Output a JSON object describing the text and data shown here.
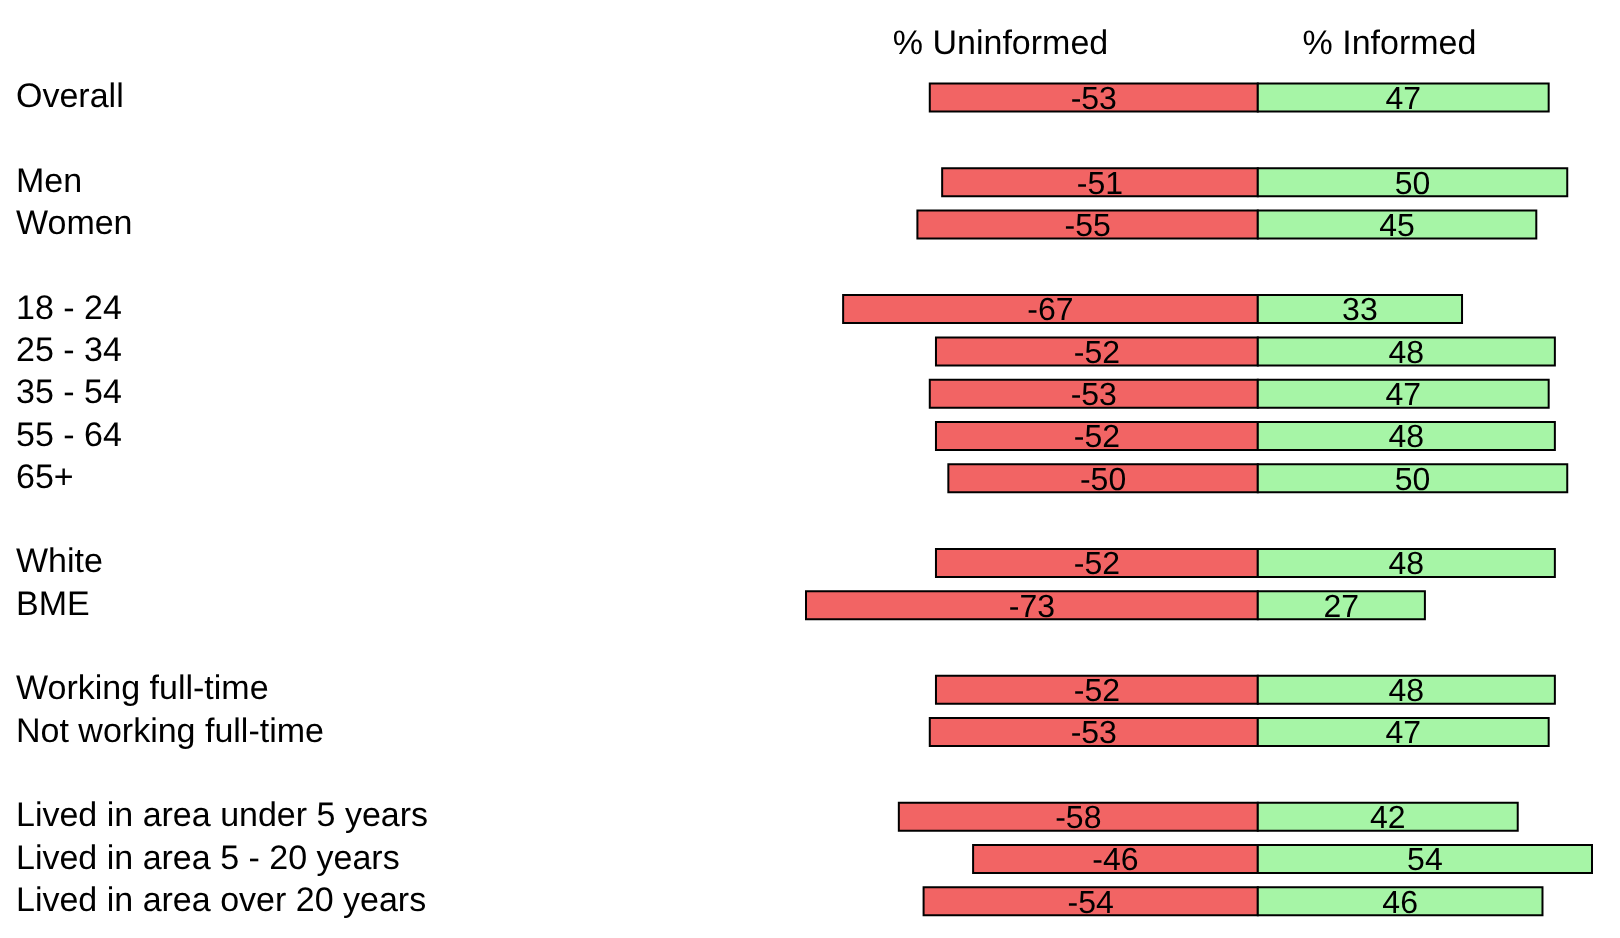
{
  "chart_data": {
    "type": "bar",
    "orientation": "horizontal",
    "stacked": true,
    "data_labels": true,
    "legend": "top",
    "categories": [
      "Overall",
      null,
      "Men",
      "Women",
      null,
      "18 - 24",
      "25 - 34",
      "35 - 54",
      "55 - 64",
      "65+",
      null,
      "White",
      "BME",
      null,
      "Working full-time",
      "Not working full-time",
      null,
      "Lived in area under 5 years",
      "Lived in area 5 - 20 years",
      "Lived in area over 20 years"
    ],
    "series": [
      {
        "name": "% Uninformed",
        "color": "#f26464",
        "values": [
          -53,
          null,
          -51,
          -55,
          null,
          -67,
          -52,
          -53,
          -52,
          -50,
          null,
          -52,
          -73,
          null,
          -52,
          -53,
          null,
          -58,
          -46,
          -54
        ]
      },
      {
        "name": "% Informed",
        "color": "#a6f5a6",
        "values": [
          47,
          null,
          50,
          45,
          null,
          33,
          48,
          47,
          48,
          50,
          null,
          48,
          27,
          null,
          48,
          47,
          null,
          42,
          54,
          46
        ]
      }
    ]
  }
}
